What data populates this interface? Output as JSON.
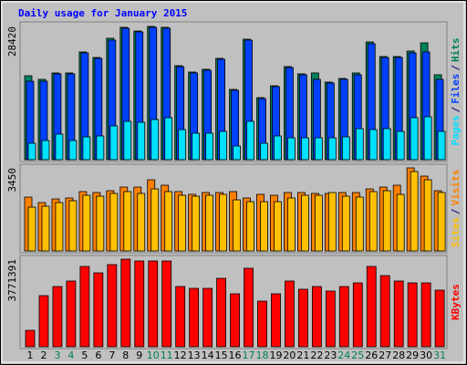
{
  "chart_data": [
    {
      "type": "bar",
      "title": "Daily usage for January 2015",
      "legend_separator": "/",
      "ylim": [
        0,
        29000
      ],
      "yticks": [
        28420
      ],
      "series": [
        {
          "name": "Pages",
          "color": "#00e0ff",
          "values": [
            3500,
            4090,
            5450,
            4090,
            4870,
            5060,
            7200,
            8180,
            7980,
            8570,
            8960,
            6420,
            5650,
            5650,
            6040,
            2920,
            8180,
            3500,
            5060,
            4670,
            4670,
            4670,
            4670,
            4870,
            6620,
            6420,
            6620,
            6040,
            8960,
            9150,
            6040
          ]
        },
        {
          "name": "Files",
          "color": "#0040ff",
          "values": [
            16740,
            16740,
            18300,
            18300,
            22780,
            21610,
            25500,
            28040,
            27260,
            28230,
            28040,
            19860,
            18500,
            19080,
            21420,
            14800,
            25500,
            13040,
            15580,
            19660,
            18110,
            17130,
            16350,
            17130,
            18110,
            24730,
            21800,
            21800,
            22780,
            22970,
            17130
          ]
        },
        {
          "name": "Hits",
          "color": "#00805c",
          "values": [
            17900,
            17130,
            18500,
            18500,
            22970,
            21800,
            25900,
            28230,
            27450,
            28420,
            28230,
            20050,
            18690,
            19280,
            21610,
            14990,
            25700,
            13240,
            15770,
            19860,
            18300,
            18500,
            16550,
            17330,
            18500,
            25120,
            22000,
            22000,
            23170,
            24920,
            18110
          ]
        }
      ]
    },
    {
      "type": "bar",
      "legend_separator": "/",
      "ylim": [
        0,
        3525
      ],
      "yticks": [
        3450
      ],
      "series": [
        {
          "name": "Sites",
          "color": "#ffc000",
          "values": [
            1819,
            1857,
            2009,
            2085,
            2312,
            2274,
            2388,
            2464,
            2388,
            2577,
            2464,
            2312,
            2274,
            2312,
            2350,
            2122,
            2047,
            2047,
            2047,
            2198,
            2312,
            2312,
            2426,
            2274,
            2236,
            2464,
            2501,
            2350,
            3297,
            2956,
            2426
          ]
        },
        {
          "name": "Visits",
          "color": "#ff8000",
          "values": [
            2236,
            2009,
            2160,
            2198,
            2464,
            2426,
            2501,
            2653,
            2653,
            2956,
            2729,
            2464,
            2350,
            2426,
            2426,
            2464,
            2198,
            2350,
            2312,
            2426,
            2426,
            2388,
            2388,
            2426,
            2426,
            2577,
            2653,
            2729,
            3450,
            3108,
            2501
          ]
        }
      ]
    },
    {
      "type": "bar",
      "ylim": [
        0,
        3850000
      ],
      "yticks": [
        3771391
      ],
      "categories": [
        "1",
        "2",
        "3",
        "4",
        "5",
        "6",
        "7",
        "8",
        "9",
        "10",
        "11",
        "12",
        "13",
        "14",
        "15",
        "16",
        "17",
        "18",
        "19",
        "20",
        "21",
        "22",
        "23",
        "24",
        "25",
        "26",
        "27",
        "28",
        "29",
        "30",
        "31"
      ],
      "highlight_categories": [
        "3",
        "4",
        "10",
        "11",
        "17",
        "18",
        "24",
        "25",
        "31"
      ],
      "highlight_color": "#008050",
      "series": [
        {
          "name": "KBytes",
          "color": "#ff0000",
          "values": [
            707000,
            2200000,
            2593000,
            2829000,
            3457000,
            3182000,
            3536000,
            3771391,
            3693000,
            3693000,
            3693000,
            2593000,
            2514000,
            2514000,
            2946000,
            2279000,
            3379000,
            1964000,
            2279000,
            2829000,
            2475000,
            2593000,
            2396000,
            2593000,
            2750000,
            3457000,
            3064000,
            2829000,
            2750000,
            2750000,
            2436000
          ]
        }
      ]
    }
  ]
}
